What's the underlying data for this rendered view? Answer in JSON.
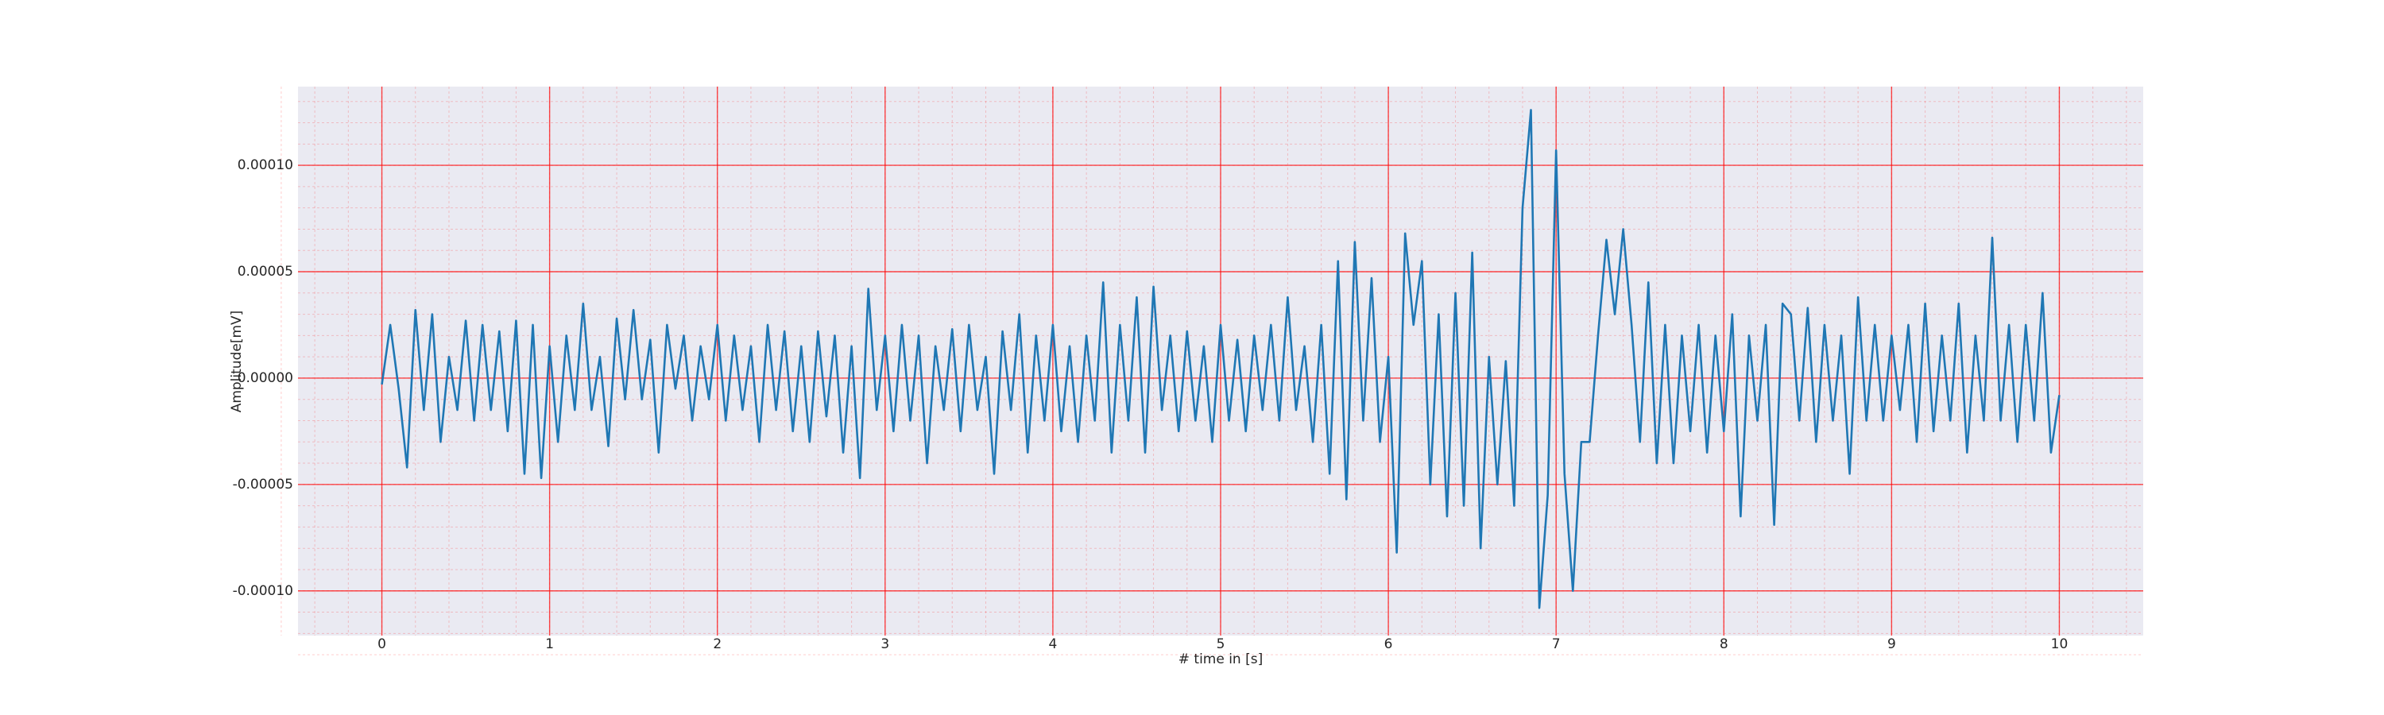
{
  "chart_data": {
    "type": "line",
    "xlabel": "# time in [s]",
    "ylabel": "Amplitude[mV]",
    "color": "#1f77b4",
    "grid": true,
    "minor_grid": true,
    "grid_color": "#ff0000",
    "background": "#eaeaf2",
    "xlim": [
      -0.5,
      10.5
    ],
    "xticks": [
      0,
      1,
      2,
      3,
      4,
      5,
      6,
      7,
      8,
      9,
      10
    ],
    "ylim": [
      -0.000121,
      0.000137
    ],
    "yticks": [
      {
        "value": -0.0001,
        "label": "-0.00010"
      },
      {
        "value": -5e-05,
        "label": "-0.00005"
      },
      {
        "value": 0,
        "label": "0.00000"
      },
      {
        "value": 5e-05,
        "label": "0.00005"
      },
      {
        "value": 0.0001,
        "label": "0.00010"
      }
    ],
    "x": [
      0,
      0.05,
      0.1,
      0.15,
      0.2,
      0.25,
      0.3,
      0.35,
      0.4,
      0.45,
      0.5,
      0.55,
      0.6,
      0.65,
      0.7,
      0.75,
      0.8,
      0.85,
      0.9,
      0.95,
      1,
      1.05,
      1.1,
      1.15,
      1.2,
      1.25,
      1.3,
      1.35,
      1.4,
      1.45,
      1.5,
      1.55,
      1.6,
      1.65,
      1.7,
      1.75,
      1.8,
      1.85,
      1.9,
      1.95,
      2,
      2.05,
      2.1,
      2.15,
      2.2,
      2.25,
      2.3,
      2.35,
      2.4,
      2.45,
      2.5,
      2.55,
      2.6,
      2.65,
      2.7,
      2.75,
      2.8,
      2.85,
      2.9,
      2.95,
      3,
      3.05,
      3.1,
      3.15,
      3.2,
      3.25,
      3.3,
      3.35,
      3.4,
      3.45,
      3.5,
      3.55,
      3.6,
      3.65,
      3.7,
      3.75,
      3.8,
      3.85,
      3.9,
      3.95,
      4,
      4.05,
      4.1,
      4.15,
      4.2,
      4.25,
      4.3,
      4.35,
      4.4,
      4.45,
      4.5,
      4.55,
      4.6,
      4.65,
      4.7,
      4.75,
      4.8,
      4.85,
      4.9,
      4.95,
      5,
      5.05,
      5.1,
      5.15,
      5.2,
      5.25,
      5.3,
      5.35,
      5.4,
      5.45,
      5.5,
      5.55,
      5.6,
      5.65,
      5.7,
      5.75,
      5.8,
      5.85,
      5.9,
      5.95,
      6,
      6.05,
      6.1,
      6.15,
      6.2,
      6.25,
      6.3,
      6.35,
      6.4,
      6.45,
      6.5,
      6.55,
      6.6,
      6.65,
      6.7,
      6.75,
      6.8,
      6.85,
      6.9,
      6.95,
      7,
      7.05,
      7.1,
      7.15,
      7.2,
      7.25,
      7.3,
      7.35,
      7.4,
      7.45,
      7.5,
      7.55,
      7.6,
      7.65,
      7.7,
      7.75,
      7.8,
      7.85,
      7.9,
      7.95,
      8,
      8.05,
      8.1,
      8.15,
      8.2,
      8.25,
      8.3,
      8.35,
      8.4,
      8.45,
      8.5,
      8.55,
      8.6,
      8.65,
      8.7,
      8.75,
      8.8,
      8.85,
      8.9,
      8.95,
      9,
      9.05,
      9.1,
      9.15,
      9.2,
      9.25,
      9.3,
      9.35,
      9.4,
      9.45,
      9.5,
      9.55,
      9.6,
      9.65,
      9.7,
      9.75,
      9.8,
      9.85,
      9.9,
      9.95,
      10
    ],
    "values": [
      -3e-06,
      2.5e-05,
      -5e-06,
      -4.2e-05,
      3.2e-05,
      -1.5e-05,
      3e-05,
      -3e-05,
      1e-05,
      -1.5e-05,
      2.7e-05,
      -2e-05,
      2.5e-05,
      -1.5e-05,
      2.2e-05,
      -2.5e-05,
      2.7e-05,
      -4.5e-05,
      2.5e-05,
      -4.7e-05,
      1.5e-05,
      -3e-05,
      2e-05,
      -1.5e-05,
      3.5e-05,
      -1.5e-05,
      1e-05,
      -3.2e-05,
      2.8e-05,
      -1e-05,
      3.2e-05,
      -1e-05,
      1.8e-05,
      -3.5e-05,
      2.5e-05,
      -5e-06,
      2e-05,
      -2e-05,
      1.5e-05,
      -1e-05,
      2.5e-05,
      -2e-05,
      2e-05,
      -1.5e-05,
      1.5e-05,
      -3e-05,
      2.5e-05,
      -1.5e-05,
      2.2e-05,
      -2.5e-05,
      1.5e-05,
      -3e-05,
      2.2e-05,
      -1.8e-05,
      2e-05,
      -3.5e-05,
      1.5e-05,
      -4.7e-05,
      4.2e-05,
      -1.5e-05,
      2e-05,
      -2.5e-05,
      2.5e-05,
      -2e-05,
      2e-05,
      -4e-05,
      1.5e-05,
      -1.5e-05,
      2.3e-05,
      -2.5e-05,
      2.5e-05,
      -1.5e-05,
      1e-05,
      -4.5e-05,
      2.2e-05,
      -1.5e-05,
      3e-05,
      -3.5e-05,
      2e-05,
      -2e-05,
      2.5e-05,
      -2.5e-05,
      1.5e-05,
      -3e-05,
      2e-05,
      -2e-05,
      4.5e-05,
      -3.5e-05,
      2.5e-05,
      -2e-05,
      3.8e-05,
      -3.5e-05,
      4.3e-05,
      -1.5e-05,
      2e-05,
      -2.5e-05,
      2.2e-05,
      -2e-05,
      1.5e-05,
      -3e-05,
      2.5e-05,
      -2e-05,
      1.8e-05,
      -2.5e-05,
      2e-05,
      -1.5e-05,
      2.5e-05,
      -2e-05,
      3.8e-05,
      -1.5e-05,
      1.5e-05,
      -3e-05,
      2.5e-05,
      -4.5e-05,
      5.5e-05,
      -5.7e-05,
      6.4e-05,
      -2e-05,
      4.7e-05,
      -3e-05,
      1e-05,
      -8.2e-05,
      6.8e-05,
      2.5e-05,
      5.5e-05,
      -5e-05,
      3e-05,
      -6.5e-05,
      4e-05,
      -6e-05,
      5.9e-05,
      -8e-05,
      1e-05,
      -5e-05,
      8e-06,
      -6e-05,
      8e-05,
      0.000126,
      -0.000108,
      -5.5e-05,
      0.000107,
      -4.5e-05,
      -0.0001,
      -3e-05,
      -3e-05,
      2e-05,
      6.5e-05,
      3e-05,
      7e-05,
      2.5e-05,
      -3e-05,
      4.5e-05,
      -4e-05,
      2.5e-05,
      -4e-05,
      2e-05,
      -2.5e-05,
      2.5e-05,
      -3.5e-05,
      2e-05,
      -2.5e-05,
      3e-05,
      -6.5e-05,
      2e-05,
      -2e-05,
      2.5e-05,
      -6.9e-05,
      3.5e-05,
      3e-05,
      -2e-05,
      3.3e-05,
      -3e-05,
      2.5e-05,
      -2e-05,
      2e-05,
      -4.5e-05,
      3.8e-05,
      -2e-05,
      2.5e-05,
      -2e-05,
      2e-05,
      -1.5e-05,
      2.5e-05,
      -3e-05,
      3.5e-05,
      -2.5e-05,
      2e-05,
      -2e-05,
      3.5e-05,
      -3.5e-05,
      2e-05,
      -2e-05,
      6.6e-05,
      -2e-05,
      2.5e-05,
      -3e-05,
      2.5e-05,
      -2e-05,
      4e-05,
      -3.5e-05,
      -8e-06
    ]
  }
}
